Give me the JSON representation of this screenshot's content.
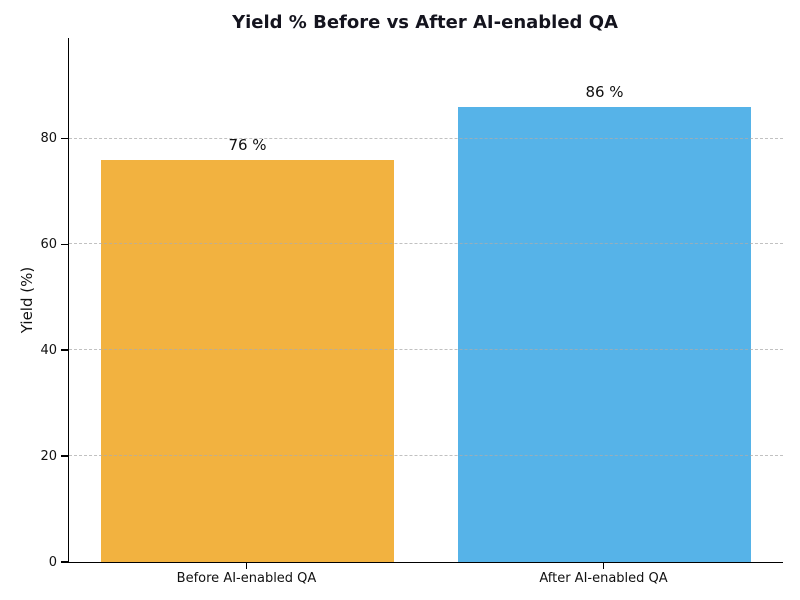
{
  "figure": {
    "background": "#ffffff"
  },
  "chart_data": {
    "type": "bar",
    "title": "Yield % Before vs After AI-enabled QA",
    "xlabel": "",
    "ylabel": "Yield (%)",
    "categories": [
      "Before AI-enabled QA",
      "After AI-enabled QA"
    ],
    "values": [
      76,
      86
    ],
    "bar_labels": [
      "76 %",
      "86 %"
    ],
    "bar_colors": [
      "#f2b240",
      "#56b3e8"
    ],
    "ylim": [
      0,
      99
    ],
    "yticks": [
      0,
      20,
      40,
      60,
      80
    ],
    "grid": "horizontal-dashed-over-bars",
    "grid_color": "#acacac",
    "spine_color": "#000000",
    "title_color": "#14141e",
    "legend": "none"
  }
}
